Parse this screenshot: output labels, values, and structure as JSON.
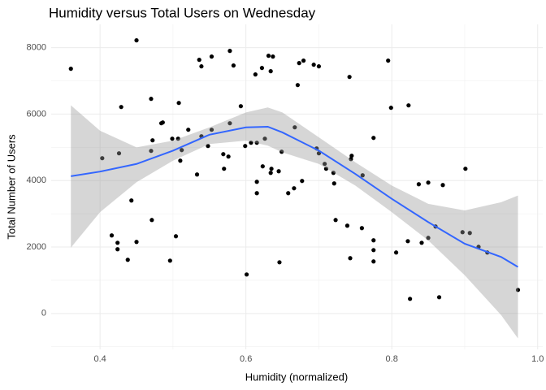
{
  "chart_data": {
    "type": "scatter",
    "title": "Humidity versus Total Users on Wednesday",
    "x_label": "Humidity (normalized)",
    "y_label": "Total Number of Users",
    "xlim": [
      0.333,
      1.007
    ],
    "ylim": [
      -1080,
      8700
    ],
    "xticks": [
      0.4,
      0.6,
      0.8,
      {
        "value": 1,
        "label": "1.0"
      }
    ],
    "yticks": [
      0,
      2000,
      4000,
      6000,
      8000
    ],
    "grid": true,
    "minor_grid": true,
    "point_color": "#000000",
    "x": [
      0.36,
      0.403,
      0.426,
      0.429,
      0.416,
      0.424,
      0.424,
      0.438,
      0.443,
      0.45,
      0.45,
      0.47,
      0.472,
      0.47,
      0.471,
      0.484,
      0.486,
      0.496,
      0.499,
      0.507,
      0.508,
      0.504,
      0.51,
      0.512,
      0.521,
      0.533,
      0.536,
      0.539,
      0.539,
      0.548,
      0.553,
      0.553,
      0.569,
      0.57,
      0.576,
      0.578,
      0.578,
      0.583,
      0.593,
      0.599,
      0.601,
      0.607,
      0.613,
      0.615,
      0.615,
      0.615,
      0.622,
      0.623,
      0.626,
      0.631,
      0.634,
      0.634,
      0.635,
      0.637,
      0.645,
      0.646,
      0.649,
      0.658,
      0.666,
      0.667,
      0.671,
      0.673,
      0.679,
      0.677,
      0.693,
      0.7,
      0.697,
      0.7,
      0.708,
      0.71,
      0.72,
      0.721,
      0.723,
      0.739,
      0.742,
      0.743,
      0.744,
      0.745,
      0.759,
      0.76,
      0.775,
      0.775,
      0.775,
      0.775,
      0.795,
      0.799,
      0.806,
      0.822,
      0.823,
      0.825,
      0.837,
      0.841,
      0.85,
      0.85,
      0.86,
      0.865,
      0.87,
      0.897,
      0.901,
      0.907,
      0.919,
      0.931,
      0.973
    ],
    "y": [
      7364,
      4673,
      4820,
      6214,
      2349,
      2128,
      1933,
      1615,
      3400,
      8220,
      2153,
      6459,
      5211,
      4893,
      2813,
      5725,
      5749,
      1590,
      5260,
      5260,
      6336,
      2324,
      4599,
      4917,
      5529,
      4183,
      7633,
      7437,
      5333,
      5040,
      7731,
      5529,
      4795,
      4355,
      4722,
      7902,
      5725,
      7462,
      6238,
      5040,
      1174,
      5138,
      7193,
      5138,
      3963,
      3621,
      7388,
      4428,
      5260,
      7755,
      4232,
      7291,
      4355,
      7731,
      4281,
      1541,
      4868,
      3621,
      3768,
      5602,
      6874,
      7535,
      7609,
      3988,
      7486,
      7437,
      4966,
      4820,
      4502,
      4355,
      4232,
      3914,
      2813,
      2642,
      7119,
      1664,
      4648,
      4746,
      2569,
      4159,
      5284,
      2202,
      1908,
      1566,
      7609,
      6190,
      1835,
      2177,
      6263,
      440,
      3890,
      2128,
      3939,
      2275,
      2618,
      489,
      3865,
      2446,
      4355,
      2422,
      2006,
      1835,
      709
    ],
    "smooth": {
      "color": "#3366ff",
      "band_color": "#999999",
      "x": [
        0.36,
        0.4,
        0.45,
        0.5,
        0.55,
        0.6,
        0.63,
        0.65,
        0.7,
        0.75,
        0.8,
        0.85,
        0.9,
        0.95,
        0.973
      ],
      "values": [
        4130,
        4270,
        4500,
        4900,
        5380,
        5600,
        5620,
        5450,
        4900,
        4200,
        3450,
        2750,
        2100,
        1700,
        1400
      ],
      "upper": [
        6263,
        5500,
        5000,
        5200,
        5600,
        6050,
        6200,
        6050,
        5300,
        4550,
        3850,
        3300,
        3100,
        3350,
        3550
      ],
      "lower": [
        1982,
        3050,
        3950,
        4600,
        5100,
        5200,
        5050,
        4850,
        4500,
        3850,
        3050,
        2200,
        1150,
        -50,
        -750
      ]
    }
  }
}
